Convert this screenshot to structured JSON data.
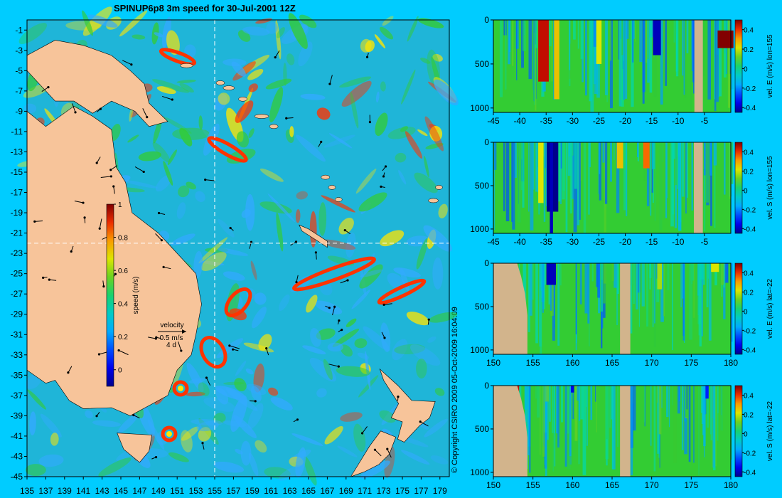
{
  "title": "SPINUP6p8 3m speed for 30-Jul-2001 12Z",
  "copyright": "© Copyright CSIRO 2009  05-Oct-2009 16:04:09",
  "colors": {
    "background": "#00ccff",
    "ocean": "#1fb5d8",
    "land": "#f7c49a",
    "section_land": "#d2b48c",
    "hot": "#ff3300",
    "warm": "#ffe600",
    "mid": "#33cc33",
    "cool": "#33aaff"
  },
  "chart_data": [
    {
      "type": "heatmap",
      "name": "map",
      "xlabel": "",
      "ylabel": "",
      "x_ticks": [
        135,
        137,
        139,
        141,
        143,
        145,
        147,
        149,
        151,
        153,
        155,
        157,
        159,
        161,
        163,
        165,
        167,
        169,
        171,
        173,
        175,
        177,
        179
      ],
      "y_ticks": [
        -1,
        -3,
        -5,
        -7,
        -9,
        -11,
        -13,
        -15,
        -17,
        -19,
        -21,
        -23,
        -25,
        -27,
        -29,
        -31,
        -33,
        -35,
        -37,
        -39,
        -41,
        -43,
        -45
      ],
      "xlim": [
        135,
        180
      ],
      "ylim": [
        -45,
        0
      ],
      "section_lon": 155,
      "section_lat": -22,
      "colorbar": {
        "label": "speed (m/s)",
        "range": [
          -0.1,
          1
        ],
        "ticks": [
          "1",
          "0.8",
          "0.6",
          "0.4",
          "0.2",
          "0"
        ]
      },
      "velocity_key": {
        "label": "velocity",
        "speed": "0.5 m/s",
        "time": "4 d"
      }
    },
    {
      "type": "heatmap",
      "name": "vel-e-lon155",
      "colorbar_label": "vel. E (m/s) lon=155",
      "x_ticks": [
        "-45",
        "-40",
        "-35",
        "-30",
        "-25",
        "-20",
        "-15",
        "-10",
        "-5"
      ],
      "y_ticks": [
        "0",
        "500",
        "1000"
      ],
      "xlim": [
        -45,
        0
      ],
      "ylim": [
        1050,
        0
      ],
      "colorbar_ticks": [
        "0.4",
        "0.2",
        "0",
        "-0.2",
        "-0.4"
      ],
      "colorbar_range": [
        -0.45,
        0.5
      ]
    },
    {
      "type": "heatmap",
      "name": "vel-s-lon155",
      "colorbar_label": "vel. S (m/s) lon=155",
      "x_ticks": [
        "-45",
        "-40",
        "-35",
        "-30",
        "-25",
        "-20",
        "-15",
        "-10",
        "-5"
      ],
      "y_ticks": [
        "0",
        "500",
        "1000"
      ],
      "xlim": [
        -45,
        0
      ],
      "ylim": [
        1050,
        0
      ],
      "colorbar_ticks": [
        "0.4",
        "0.2",
        "0",
        "-0.2",
        "-0.4"
      ],
      "colorbar_range": [
        -0.45,
        0.5
      ]
    },
    {
      "type": "heatmap",
      "name": "vel-e-lat-22",
      "colorbar_label": "vel. E (m/s) lat=-22",
      "x_ticks": [
        "150",
        "155",
        "160",
        "165",
        "170",
        "175",
        "180"
      ],
      "y_ticks": [
        "0",
        "500",
        "1000"
      ],
      "xlim": [
        150,
        180
      ],
      "ylim": [
        1050,
        0
      ],
      "colorbar_ticks": [
        "0.4",
        "0.2",
        "0",
        "-0.2",
        "-0.4"
      ],
      "colorbar_range": [
        -0.45,
        0.5
      ]
    },
    {
      "type": "heatmap",
      "name": "vel-s-lat-22",
      "colorbar_label": "vel. S (m/s) lat=-22",
      "x_ticks": [
        "150",
        "155",
        "160",
        "165",
        "170",
        "175",
        "180"
      ],
      "y_ticks": [
        "0",
        "500",
        "1000"
      ],
      "xlim": [
        150,
        180
      ],
      "ylim": [
        1050,
        0
      ],
      "colorbar_ticks": [
        "0.4",
        "0.2",
        "0",
        "-0.2",
        "-0.4"
      ],
      "colorbar_range": [
        -0.45,
        0.5
      ]
    }
  ]
}
